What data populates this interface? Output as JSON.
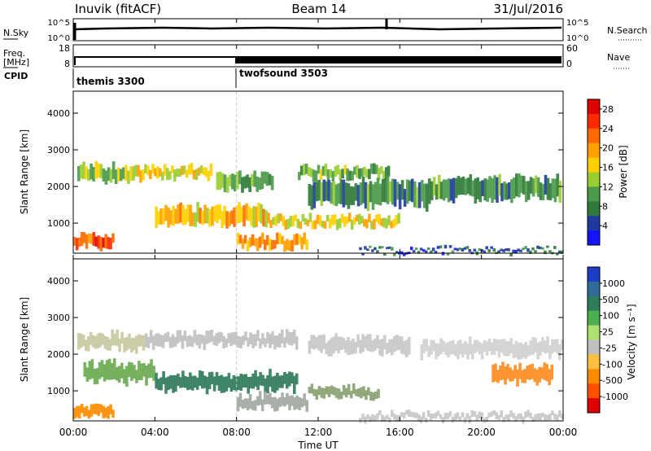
{
  "header": {
    "station": "Inuvik (fitACF)",
    "beam": "Beam 14",
    "date": "31/Jul/2016"
  },
  "status_panels": {
    "nsky_label": "N.Sky",
    "nsearch_label": "N.Search",
    "noise_ticks": [
      "10^5",
      "10^0"
    ],
    "freq_label_top": "Freq.",
    "freq_label_unit": "[MHz]",
    "freq_ticks": [
      "18",
      "8"
    ],
    "nave_label": "Nave",
    "nave_ticks": [
      "60",
      "0"
    ],
    "cpid_label": "CPID",
    "cpid_modes": [
      {
        "name": "themis 3300",
        "start_hour": 0
      },
      {
        "name": "twofsound 3503",
        "start_hour": 8
      }
    ]
  },
  "time_axis": {
    "label": "Time UT",
    "ticks": [
      "00:00",
      "04:00",
      "08:00",
      "12:00",
      "16:00",
      "20:00",
      "00:00"
    ],
    "tick_hours": [
      0,
      4,
      8,
      12,
      16,
      20,
      24
    ]
  },
  "chart_data": [
    {
      "type": "heatmap",
      "name": "power",
      "ylabel": "Slant Range [km]",
      "yticks": [
        "1000",
        "2000",
        "3000",
        "4000"
      ],
      "ytick_values": [
        1000,
        2000,
        3000,
        4000
      ],
      "ylim": [
        180,
        4600
      ],
      "xlim": [
        0,
        24
      ],
      "colorbar_label": "Power [dB]",
      "colorbar_ticks": [
        "4",
        "8",
        "12",
        "16",
        "20",
        "24",
        "28"
      ],
      "colorbar_range": [
        0,
        30
      ],
      "colorbar_colors": [
        "#1414ff",
        "#1e3aa0",
        "#2f7a3a",
        "#4a9a4a",
        "#9acd32",
        "#ffd000",
        "#ff9f00",
        "#ff6a00",
        "#ff2a00",
        "#e00000"
      ],
      "bands": [
        {
          "t": [
            0.2,
            3.0
          ],
          "r": [
            2100,
            2600
          ],
          "level": 14
        },
        {
          "t": [
            3.0,
            6.8
          ],
          "r": [
            2200,
            2550
          ],
          "level": 16
        },
        {
          "t": [
            7.0,
            9.8
          ],
          "r": [
            1900,
            2400
          ],
          "level": 11
        },
        {
          "t": [
            11.0,
            15.5
          ],
          "r": [
            2200,
            2550
          ],
          "level": 12
        },
        {
          "t": [
            11.5,
            17.5
          ],
          "r": [
            1400,
            2200
          ],
          "level": 9
        },
        {
          "t": [
            17.5,
            23.9
          ],
          "r": [
            1600,
            2300
          ],
          "level": 9
        },
        {
          "t": [
            4.0,
            9.5
          ],
          "r": [
            900,
            1500
          ],
          "level": 18
        },
        {
          "t": [
            9.5,
            16.0
          ],
          "r": [
            900,
            1200
          ],
          "level": 16
        },
        {
          "t": [
            0.0,
            2.0
          ],
          "r": [
            300,
            700
          ],
          "level": 24
        },
        {
          "t": [
            8.0,
            11.5
          ],
          "r": [
            300,
            650
          ],
          "level": 20
        },
        {
          "t": [
            14.0,
            24.0
          ],
          "r": [
            200,
            300
          ],
          "level": 6
        }
      ]
    },
    {
      "type": "heatmap",
      "name": "velocity",
      "ylabel": "Slant Range [km]",
      "yticks": [
        "1000",
        "2000",
        "3000",
        "4000"
      ],
      "ytick_values": [
        1000,
        2000,
        3000,
        4000
      ],
      "ylim": [
        180,
        4600
      ],
      "xlim": [
        0,
        24
      ],
      "colorbar_label": "Velocity [m s⁻¹]",
      "colorbar_ticks": [
        "1000",
        "500",
        "100",
        "25",
        "-25",
        "-100",
        "-500",
        "-1000"
      ],
      "colorbar_colors": [
        "#1e3cc8",
        "#2f6a9a",
        "#2e7d5a",
        "#4caf50",
        "#b0e070",
        "#c0c0c0",
        "#ffbf40",
        "#ff8c00",
        "#ff5000",
        "#e00000"
      ],
      "bands": [
        {
          "t": [
            0.2,
            3.5
          ],
          "r": [
            2100,
            2600
          ],
          "color": "#c8c8a0"
        },
        {
          "t": [
            3.5,
            11.0
          ],
          "r": [
            2200,
            2600
          ],
          "color": "#c0c0c0"
        },
        {
          "t": [
            11.5,
            16.5
          ],
          "r": [
            2000,
            2500
          ],
          "color": "#c8c8c8"
        },
        {
          "t": [
            17.0,
            24.0
          ],
          "r": [
            1900,
            2400
          ],
          "color": "#d0d0d0"
        },
        {
          "t": [
            0.5,
            4.0
          ],
          "r": [
            1200,
            1800
          ],
          "color": "#6aaa50"
        },
        {
          "t": [
            4.0,
            11.0
          ],
          "r": [
            1000,
            1500
          ],
          "color": "#2f7a5a"
        },
        {
          "t": [
            8.0,
            11.5
          ],
          "r": [
            500,
            900
          ],
          "color": "#a0a8a0"
        },
        {
          "t": [
            11.5,
            15.0
          ],
          "r": [
            800,
            1100
          ],
          "color": "#8aa070"
        },
        {
          "t": [
            20.5,
            23.5
          ],
          "r": [
            1200,
            1700
          ],
          "color": "#ff8c20"
        },
        {
          "t": [
            0.0,
            2.0
          ],
          "r": [
            250,
            600
          ],
          "color": "#ff8c00"
        },
        {
          "t": [
            14.0,
            24.0
          ],
          "r": [
            200,
            400
          ],
          "color": "#c8c8c8"
        }
      ]
    }
  ]
}
